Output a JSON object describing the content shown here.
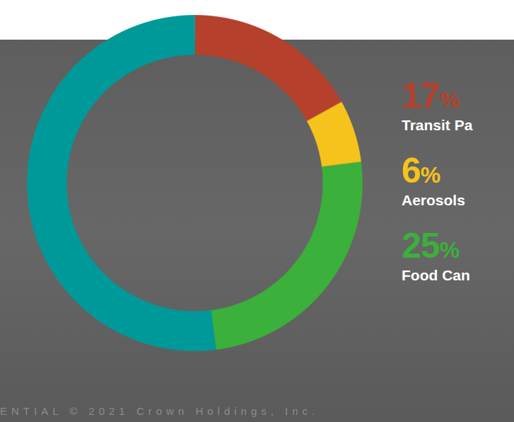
{
  "chart_data": {
    "type": "donut",
    "categories": [
      "Transit Pa",
      "Aerosols",
      "Food Can",
      null
    ],
    "values": [
      17,
      6,
      25,
      52
    ],
    "value_labels": [
      "17%",
      "6%",
      "25%",
      null
    ],
    "colors": [
      "#b5402b",
      "#f5c31c",
      "#3bb03b",
      "#00999a"
    ],
    "data_labels": true,
    "caption": "ENTIAL © 2021 Crown Holdings, Inc."
  }
}
